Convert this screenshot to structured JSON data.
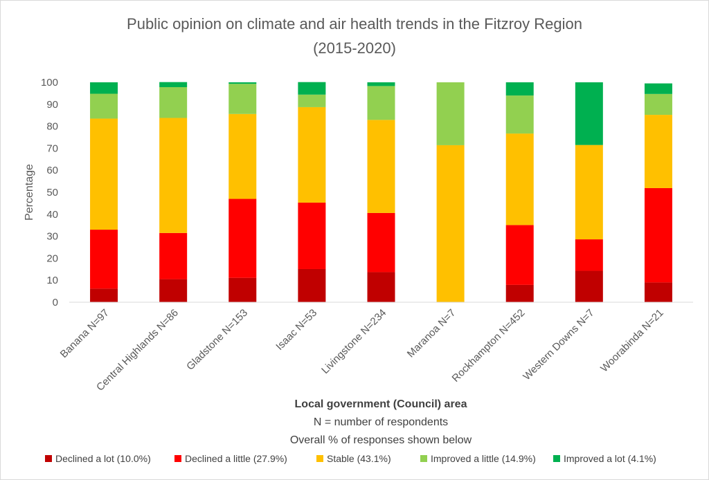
{
  "chart_data": {
    "type": "bar",
    "stacked": true,
    "title_lines": [
      "Public opinion on climate and air health trends in the Fitzroy Region",
      "(2015-2020)"
    ],
    "ylabel": "Percentage",
    "xlabel_lines": [
      "Local government (Council) area",
      "N = number of respondents",
      "Overall % of responses shown below"
    ],
    "ylim": [
      0,
      100
    ],
    "yticks": [
      0,
      10,
      20,
      30,
      40,
      50,
      60,
      70,
      80,
      90,
      100
    ],
    "grid": false,
    "legend_position": "bottom",
    "categories": [
      "Banana N=97",
      "Central Highlands N=86",
      "Gladstone N=153",
      "Isaac N=53",
      "Livingstone N=234",
      "Maranoa N=7",
      "Rockhampton N=452",
      "Western Downs N=7",
      "Woorabinda N=21"
    ],
    "series": [
      {
        "name": "Declined a lot (10.0%)",
        "color": "#c00000",
        "values": [
          6.2,
          10.5,
          11.1,
          15.1,
          13.7,
          0,
          7.9,
          14.3,
          9.0
        ]
      },
      {
        "name": "Declined a little (27.9%)",
        "color": "#ff0000",
        "values": [
          26.8,
          21.0,
          35.9,
          30.2,
          26.9,
          0,
          27.2,
          14.3,
          42.9
        ]
      },
      {
        "name": "Stable (43.1%)",
        "color": "#ffc000",
        "values": [
          50.5,
          52.3,
          38.6,
          43.4,
          42.3,
          71.4,
          41.6,
          42.9,
          33.3
        ]
      },
      {
        "name": "Improved a little (14.9%)",
        "color": "#92d050",
        "values": [
          11.3,
          14.0,
          13.7,
          5.7,
          15.4,
          28.6,
          17.3,
          0,
          9.5
        ]
      },
      {
        "name": "Improved a lot (4.1%)",
        "color": "#00b050",
        "values": [
          5.2,
          2.3,
          0.7,
          5.7,
          1.7,
          0,
          6.0,
          28.5,
          4.8
        ]
      }
    ]
  }
}
